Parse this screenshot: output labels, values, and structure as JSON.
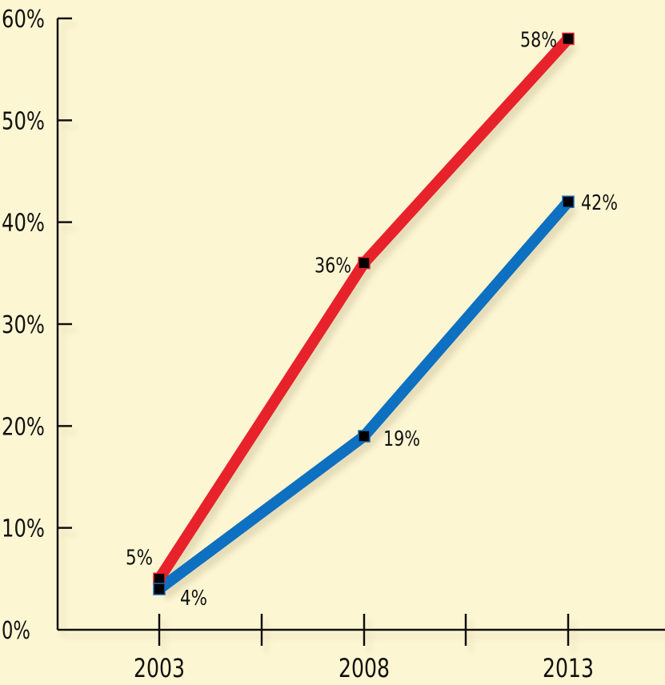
{
  "chart_data": {
    "type": "line",
    "categories": [
      "2003",
      "2008",
      "2013"
    ],
    "series": [
      {
        "values": [
          5,
          36,
          58
        ],
        "color": "#e8212b",
        "labels": [
          "5%",
          "36%",
          "58%"
        ]
      },
      {
        "values": [
          4,
          19,
          42
        ],
        "color": "#0f6fc0",
        "labels": [
          "4%",
          "19%",
          "42%"
        ]
      }
    ],
    "y_tick_labels": [
      "0%",
      "10%",
      "20%",
      "30%",
      "40%",
      "50%",
      "60%"
    ],
    "ylim": [
      0,
      60
    ],
    "y_ticks": [
      0,
      10,
      20,
      30,
      40,
      50,
      60
    ],
    "grid": false,
    "background": "#fdf6d2",
    "axis_color": "#111111",
    "marker_color": "#000000"
  }
}
